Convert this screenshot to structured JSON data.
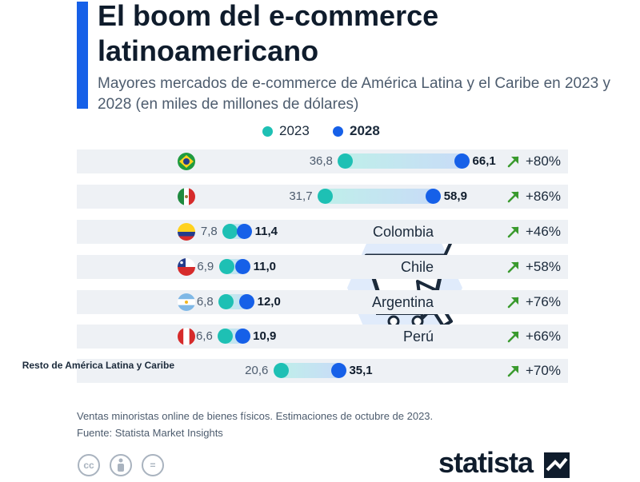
{
  "title": "El boom del e-commerce latinoamericano",
  "subtitle": "Mayores mercados de e-commerce de América Latina y el Caribe en 2023 y 2028 (en miles de millones de dólares)",
  "colors": {
    "accent": "#1660e8",
    "y2023": "#1ec0b4",
    "y2028": "#1660e8",
    "growth_arrow": "#3a9a2e"
  },
  "chart_data": {
    "type": "dumbbell",
    "series": [
      {
        "name": "2023",
        "values": [
          36.8,
          31.7,
          7.8,
          6.9,
          6.8,
          6.6,
          20.6
        ]
      },
      {
        "name": "2028",
        "values": [
          66.1,
          58.9,
          11.4,
          11.0,
          12.0,
          10.9,
          35.1
        ]
      }
    ],
    "categories": [
      "Brasil",
      "México",
      "Colombia",
      "Chile",
      "Argentina",
      "Perú",
      "Resto de América Latina y Caribe"
    ],
    "legend": "top-center",
    "rows": [
      {
        "label": "Brasil",
        "flag": "brazil-flag",
        "v2023": 36.8,
        "v2028": 66.1,
        "label_2023": "36,8",
        "label_2028": "66,1",
        "growth": "+80%"
      },
      {
        "label": "México",
        "flag": "mexico-flag",
        "v2023": 31.7,
        "v2028": 58.9,
        "label_2023": "31,7",
        "label_2028": "58,9",
        "growth": "+86%"
      },
      {
        "label": "Colombia",
        "flag": "colombia-flag",
        "v2023": 7.8,
        "v2028": 11.4,
        "label_2023": "7,8",
        "label_2028": "11,4",
        "growth": "+46%"
      },
      {
        "label": "Chile",
        "flag": "chile-flag",
        "v2023": 6.9,
        "v2028": 11.0,
        "label_2023": "6,9",
        "label_2028": "11,0",
        "growth": "+58%"
      },
      {
        "label": "Argentina",
        "flag": "argentina-flag",
        "v2023": 6.8,
        "v2028": 12.0,
        "label_2023": "6,8",
        "label_2028": "12,0",
        "growth": "+76%"
      },
      {
        "label": "Perú",
        "flag": "peru-flag",
        "v2023": 6.6,
        "v2028": 10.9,
        "label_2023": "6,6",
        "label_2028": "10,9",
        "growth": "+66%"
      },
      {
        "label": "Resto de América Latina y Caribe",
        "flag": "",
        "v2023": 20.6,
        "v2028": 35.1,
        "label_2023": "20,6",
        "label_2028": "35,1",
        "growth": "+70%"
      }
    ]
  },
  "illustration": {
    "icon": "shopping-cart-cursor-icon"
  },
  "notes": {
    "line1": "Ventas minoristas online de bienes físicos. Estimaciones de octubre de 2023.",
    "line2": "Fuente: Statista Market Insights"
  },
  "license_icons": [
    "cc-icon",
    "by-icon",
    "nd-icon"
  ],
  "license_labels": {
    "cc": "cc",
    "nd": "="
  },
  "brand": "statista"
}
